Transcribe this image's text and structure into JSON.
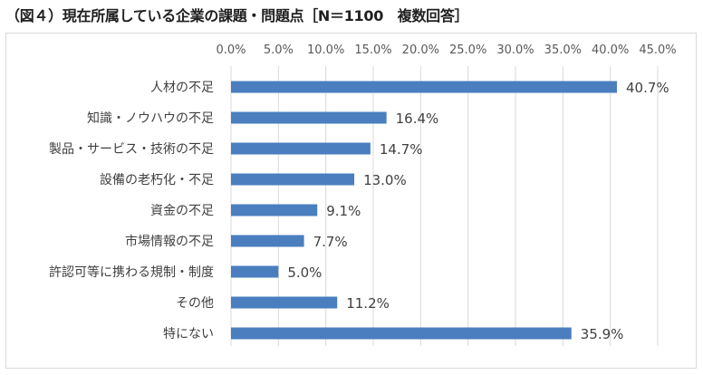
{
  "chart_data": {
    "type": "bar",
    "orientation": "horizontal",
    "title": "（図４）現在所属している企業の課題・問題点［N＝1100　複数回答］",
    "categories": [
      "人材の不足",
      "知識・ノウハウの不足",
      "製品・サービス・技術の不足",
      "設備の老朽化・不足",
      "資金の不足",
      "市場情報の不足",
      "許認可等に携わる規制・制度",
      "その他",
      "特にない"
    ],
    "values": [
      40.7,
      16.4,
      14.7,
      13.0,
      9.1,
      7.7,
      5.0,
      11.2,
      35.9
    ],
    "value_labels": [
      "40.7%",
      "16.4%",
      "14.7%",
      "13.0%",
      "9.1%",
      "7.7%",
      "5.0%",
      "11.2%",
      "35.9%"
    ],
    "xlim": [
      0,
      45
    ],
    "x_ticks": [
      0,
      5,
      10,
      15,
      20,
      25,
      30,
      35,
      40,
      45
    ],
    "x_tick_labels": [
      "0.0%",
      "5.0%",
      "10.0%",
      "15.0%",
      "20.0%",
      "25.0%",
      "30.0%",
      "35.0%",
      "40.0%",
      "45.0%"
    ],
    "x_axis_position": "top",
    "grid": true,
    "bar_color": "#4a7ebf",
    "grid_color": "#d9d9d9"
  }
}
